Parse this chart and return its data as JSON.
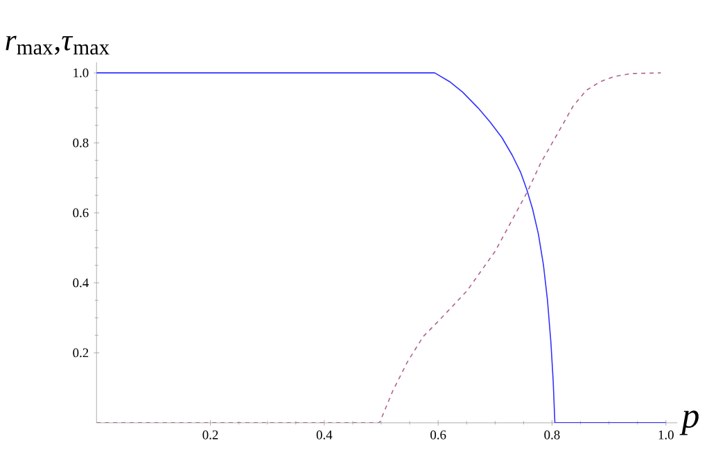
{
  "chart_data": {
    "type": "line",
    "xlabel": "p",
    "ylabel": "*r*$_{max}$,*τ*$_{max}$",
    "xlim": [
      0,
      1.02
    ],
    "ylim": [
      0,
      1.03
    ],
    "xticks": [
      0.2,
      0.4,
      0.6,
      0.8,
      {
        "value": 1,
        "label": "1.0"
      }
    ],
    "yticks": [
      0.2,
      0.4,
      0.6,
      0.8,
      {
        "value": 1,
        "label": "1.0"
      }
    ],
    "grid": false,
    "marker": "none",
    "series": [
      {
        "color": "#3030ff",
        "line_style": "solid",
        "x": [
          0,
          0.594,
          0.62,
          0.643,
          0.67,
          0.691,
          0.712,
          0.73,
          0.745,
          0.756,
          0.766,
          0.776,
          0.785,
          0.792,
          0.798,
          0.802,
          0.805,
          1.0
        ],
        "values": [
          1,
          1,
          0.975,
          0.945,
          0.9,
          0.86,
          0.815,
          0.765,
          0.715,
          0.665,
          0.61,
          0.54,
          0.45,
          0.35,
          0.23,
          0.12,
          0,
          0
        ]
      },
      {
        "color": "#b06090",
        "line_style": "dashed",
        "x": [
          0,
          0.497,
          0.52,
          0.546,
          0.574,
          0.6,
          0.631,
          0.651,
          0.7,
          0.756,
          0.78,
          0.805,
          0.837,
          0.86,
          0.885,
          0.91,
          0.94,
          0.991
        ],
        "values": [
          0,
          0,
          0.09,
          0.174,
          0.247,
          0.29,
          0.343,
          0.378,
          0.49,
          0.658,
          0.742,
          0.813,
          0.905,
          0.95,
          0.975,
          0.99,
          0.998,
          1.0
        ]
      }
    ]
  }
}
